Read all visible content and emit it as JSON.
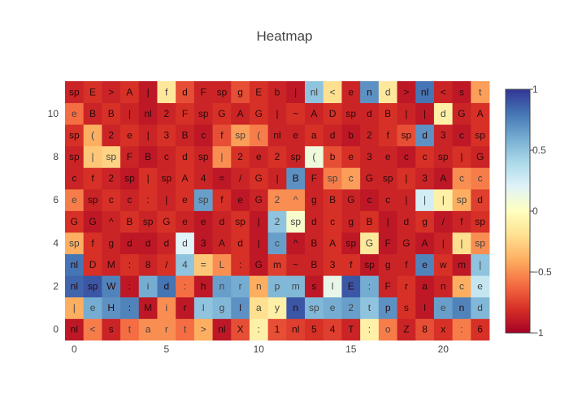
{
  "chart_data": {
    "type": "heatmap",
    "title": "Heatmap",
    "colorscale": "RdYlBu",
    "zmin": -1,
    "zmax": 1,
    "x_ticks": [
      "0",
      "5",
      "10",
      "15",
      "20"
    ],
    "x_tick_values": [
      0,
      5,
      10,
      15,
      20
    ],
    "y_ticks": [
      "0",
      "2",
      "4",
      "6",
      "8",
      "10"
    ],
    "y_tick_values": [
      0,
      2,
      4,
      6,
      8,
      10
    ],
    "colorbar_ticks": [
      "1",
      "0.5",
      "0",
      "−0.5",
      "−1"
    ],
    "colorbar_tick_values": [
      1,
      0.5,
      0,
      -0.5,
      -1
    ],
    "rows": [
      "nl < s t a r t > nl X : 1 nl 5 4 T : o Z 8 x : 6",
      "| e H : M i r l g l a y n sp e 2 t p s l e n d",
      "nl sp W : i d : h n r n p m s l E : F r a n c e",
      "nl D M : 8 / 4 = L : G m ~ B 3 f sp g f e w m |",
      "sp f g d d d d 3 A d | c ^ B A sp G F G A | | sp",
      "G G ^ B sp G e e d sp | 2 sp d c g B | d g / f sp",
      "e sp c c : | e sp f e G 2 ^ g B G c c | | | sp d",
      "c f 2 sp | sp A 4 = / G | B F sp c G sp | 3 A c c",
      "sp | sp F B c d sp | 2 e 2 sp ( b e 3 e c c sp | G",
      "sp ( 2 e | 3 B c f sp ( nl e a d b 2 f sp d 3 c sp",
      "e B B | nl 2 F sp G A G | ~ A D sp d B | | d G A",
      "sp E > A | f d F sp g E b | nl < e n d > nl < s t"
    ],
    "z": [
      [
        -0.9,
        -0.55,
        -0.85,
        -0.6,
        -0.5,
        -0.5,
        -0.6,
        -0.4,
        -0.9,
        -0.7,
        -0.1,
        -0.7,
        -0.75,
        -0.8,
        -0.75,
        -0.85,
        -0.1,
        -0.55,
        -0.85,
        -0.7,
        -0.8,
        -0.55,
        -0.8
      ],
      [
        -0.4,
        0.6,
        0.7,
        0.75,
        -0.9,
        -0.5,
        -0.9,
        0.5,
        0.55,
        0.7,
        -0.2,
        -0.1,
        0.9,
        0.55,
        0.6,
        0.65,
        0.5,
        0.7,
        -0.8,
        -0.9,
        0.65,
        0.75,
        0.55
      ],
      [
        0.85,
        0.9,
        0.75,
        -0.9,
        0.6,
        0.8,
        -0.6,
        -0.9,
        0.65,
        0.6,
        -0.4,
        0.55,
        0.55,
        -0.9,
        0.15,
        0.9,
        0.6,
        -0.85,
        -0.8,
        -0.9,
        -0.85,
        -0.4,
        0.3
      ],
      [
        0.8,
        -0.8,
        -0.85,
        -0.8,
        -0.85,
        -0.8,
        0.5,
        -0.3,
        -0.5,
        -0.8,
        -0.9,
        -0.75,
        -0.85,
        -0.85,
        -0.8,
        -0.8,
        -0.9,
        -0.85,
        -0.85,
        0.75,
        -0.8,
        -0.9,
        0.5
      ],
      [
        -0.4,
        -0.8,
        -0.85,
        -0.9,
        -0.9,
        -0.85,
        0.2,
        -0.9,
        -0.85,
        -0.8,
        -0.9,
        0.65,
        -0.9,
        -0.85,
        -0.8,
        -0.9,
        -0.15,
        -0.9,
        -0.85,
        -0.9,
        -0.85,
        -0.2,
        -0.5
      ],
      [
        -0.8,
        -0.9,
        -0.85,
        -0.8,
        -0.85,
        -0.8,
        -0.85,
        -0.9,
        -0.85,
        -0.8,
        -0.9,
        0.5,
        0.05,
        -0.85,
        -0.8,
        -0.85,
        -0.8,
        -0.9,
        -0.85,
        -0.8,
        -0.9,
        -0.85,
        -0.8
      ],
      [
        -0.55,
        -0.85,
        -0.8,
        -0.85,
        -0.8,
        -0.85,
        -0.8,
        0.65,
        -0.8,
        -0.9,
        -0.85,
        -0.5,
        -0.5,
        -0.85,
        -0.8,
        -0.85,
        -0.9,
        -0.85,
        -0.85,
        0.25,
        -0.1,
        -0.4,
        -0.75
      ],
      [
        -0.85,
        -0.8,
        -0.85,
        -0.9,
        -0.8,
        -0.85,
        -0.8,
        -0.85,
        -0.9,
        -0.85,
        -0.8,
        -0.85,
        0.7,
        -0.85,
        -0.55,
        -0.45,
        -0.85,
        -0.85,
        -0.8,
        -0.85,
        -0.9,
        -0.5,
        -0.55
      ],
      [
        -0.85,
        -0.3,
        -0.25,
        -0.85,
        -0.9,
        -0.85,
        -0.8,
        -0.85,
        -0.5,
        -0.8,
        -0.85,
        -0.8,
        -0.85,
        0.1,
        -0.7,
        -0.8,
        -0.85,
        -0.85,
        -0.9,
        -0.8,
        -0.85,
        -0.8,
        -0.85
      ],
      [
        -0.8,
        -0.4,
        -0.85,
        -0.8,
        -0.85,
        -0.8,
        -0.85,
        -0.9,
        -0.7,
        -0.45,
        -0.55,
        -0.85,
        -0.85,
        -0.8,
        -0.85,
        -0.9,
        -0.85,
        -0.8,
        -0.7,
        0.7,
        -0.85,
        -0.9,
        -0.8
      ],
      [
        -0.6,
        -0.85,
        -0.8,
        -0.85,
        -0.9,
        -0.85,
        -0.8,
        -0.85,
        -0.8,
        -0.85,
        -0.8,
        -0.85,
        -0.8,
        -0.85,
        -0.8,
        -0.85,
        -0.85,
        -0.8,
        -0.85,
        -0.9,
        -0.1,
        -0.85,
        -0.8
      ],
      [
        -0.85,
        -0.8,
        -0.85,
        -0.8,
        -0.9,
        -0.15,
        -0.7,
        -0.85,
        -0.85,
        -0.7,
        -0.8,
        -0.85,
        -0.9,
        0.5,
        -0.2,
        -0.85,
        0.7,
        -0.15,
        -0.9,
        0.8,
        -0.85,
        -0.9,
        -0.45
      ]
    ]
  }
}
